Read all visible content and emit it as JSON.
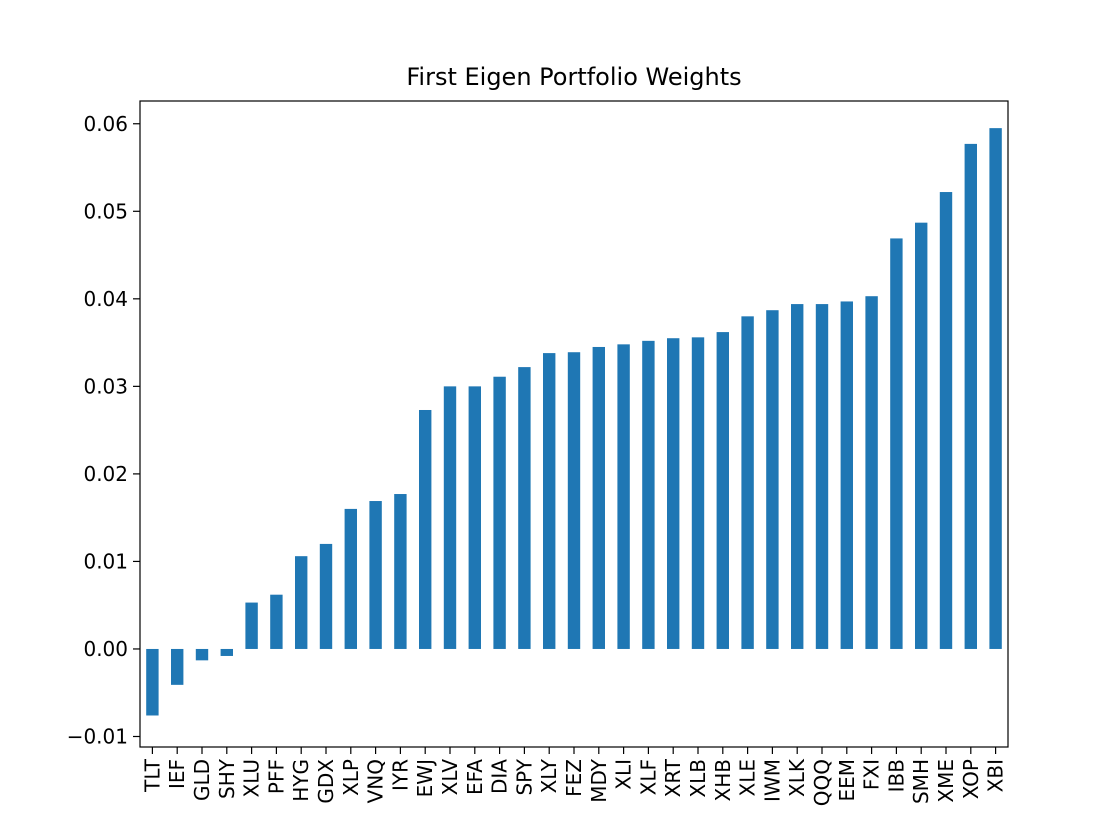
{
  "chart_data": {
    "type": "bar",
    "title": "First Eigen Portfolio Weights",
    "xlabel": "",
    "ylabel": "",
    "ylim": [
      -0.0112,
      0.0626
    ],
    "yticks": [
      -0.01,
      0.0,
      0.01,
      0.02,
      0.03,
      0.04,
      0.05,
      0.06
    ],
    "ytick_labels": [
      "−0.01",
      "0.00",
      "0.01",
      "0.02",
      "0.03",
      "0.04",
      "0.05",
      "0.06"
    ],
    "grid": false,
    "legend": "none",
    "bar_color": "#1f77b4",
    "categories": [
      "TLT",
      "IEF",
      "GLD",
      "SHY",
      "XLU",
      "PFF",
      "HYG",
      "GDX",
      "XLP",
      "VNQ",
      "IYR",
      "EWJ",
      "XLV",
      "EFA",
      "DIA",
      "SPY",
      "XLY",
      "FEZ",
      "MDY",
      "XLI",
      "XLF",
      "XRT",
      "XLB",
      "XHB",
      "XLE",
      "IWM",
      "XLK",
      "QQQ",
      "EEM",
      "FXI",
      "IBB",
      "SMH",
      "XME",
      "XOP",
      "XBI"
    ],
    "values": [
      -0.0076,
      -0.0041,
      -0.0013,
      -0.0008,
      0.0053,
      0.0062,
      0.0106,
      0.012,
      0.016,
      0.0169,
      0.0177,
      0.0273,
      0.03,
      0.03,
      0.0311,
      0.0322,
      0.0338,
      0.0339,
      0.0345,
      0.0348,
      0.0352,
      0.0355,
      0.0356,
      0.0362,
      0.038,
      0.0387,
      0.0394,
      0.0394,
      0.0397,
      0.0403,
      0.0469,
      0.0487,
      0.0522,
      0.0577,
      0.0595
    ]
  }
}
